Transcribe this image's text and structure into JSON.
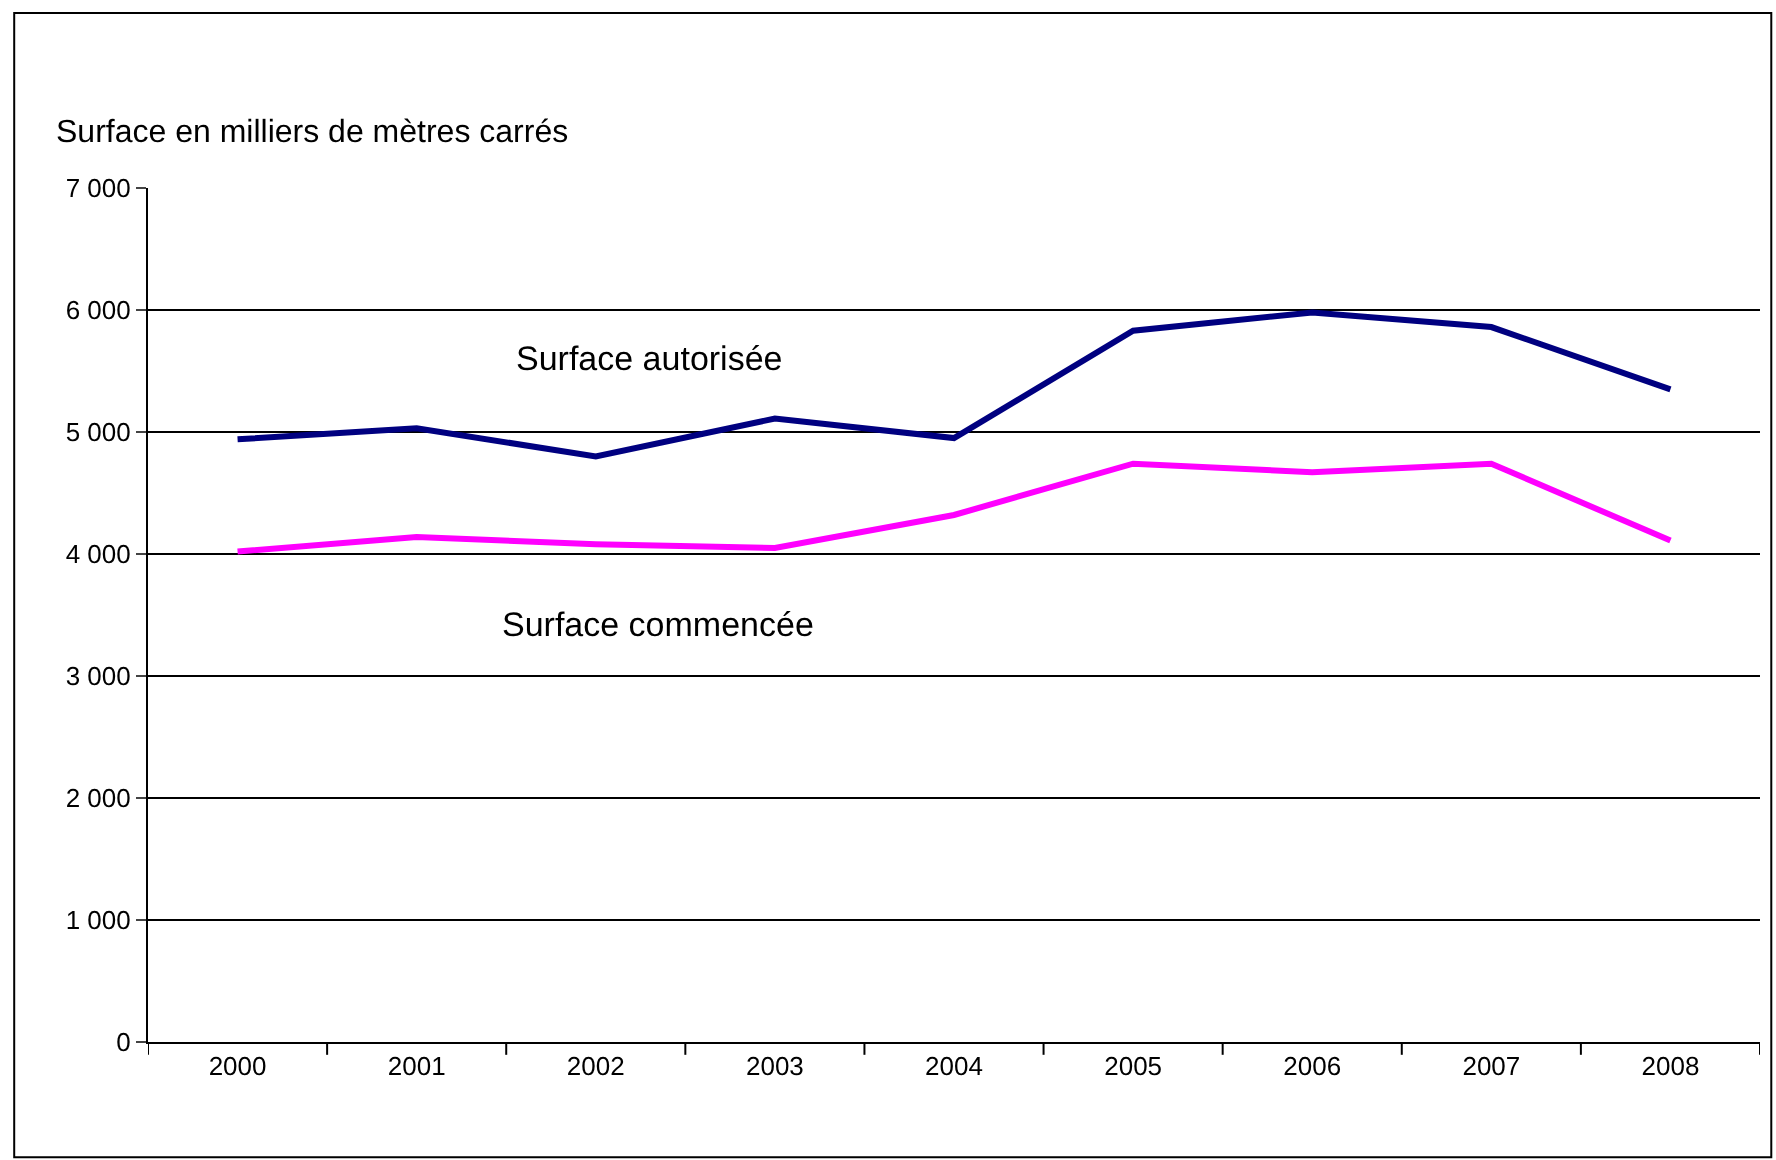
{
  "chart_data": {
    "type": "line",
    "ylabel": "Surface en milliers de mètres carrés",
    "categories": [
      "2000",
      "2001",
      "2002",
      "2003",
      "2004",
      "2005",
      "2006",
      "2007",
      "2008"
    ],
    "series": [
      {
        "name": "Surface autorisée",
        "color": "#000080",
        "values": [
          4940,
          5030,
          4800,
          5110,
          4950,
          5830,
          5980,
          5860,
          5350
        ]
      },
      {
        "name": "Surface commencée",
        "color": "#ff00ff",
        "values": [
          4020,
          4140,
          4080,
          4050,
          4320,
          4740,
          4670,
          4740,
          4110
        ]
      }
    ],
    "ylim": [
      0,
      7000
    ],
    "yticks": [
      {
        "value": 0,
        "label": "0"
      },
      {
        "value": 1000,
        "label": "1 000"
      },
      {
        "value": 2000,
        "label": "2 000"
      },
      {
        "value": 3000,
        "label": "3 000"
      },
      {
        "value": 4000,
        "label": "4 000"
      },
      {
        "value": 5000,
        "label": "5 000"
      },
      {
        "value": 6000,
        "label": "6 000"
      },
      {
        "value": 7000,
        "label": "7 000"
      }
    ],
    "grid": "y",
    "legend": false,
    "marker": "none",
    "line_style": "solid"
  }
}
